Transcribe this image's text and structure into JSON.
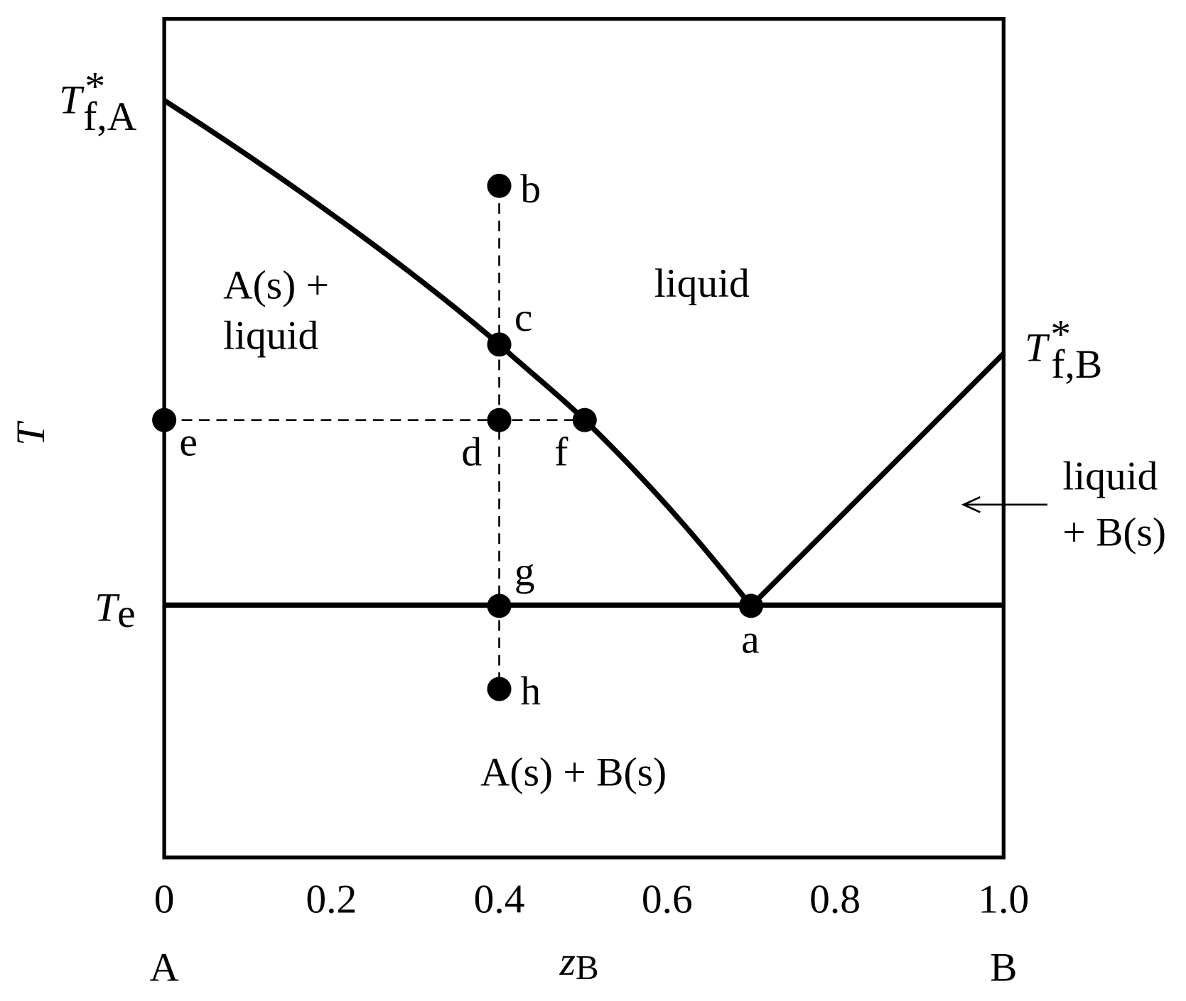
{
  "axis": {
    "y_label": "T",
    "x_label": "z",
    "x_label_subscript": "B",
    "x_ticks": [
      "0",
      "0.2",
      "0.4",
      "0.6",
      "0.8",
      "1.0"
    ],
    "left_end": "A",
    "right_end": "B"
  },
  "temperatures": {
    "melting_A": {
      "symbol": "T",
      "superscript": "*",
      "subscript": "f,A"
    },
    "melting_B": {
      "symbol": "T",
      "superscript": "*",
      "subscript": "f,B"
    },
    "eutectic": {
      "symbol": "T",
      "subscript": "e"
    }
  },
  "regions": {
    "a_solid_liquid": [
      "A(s) +",
      "liquid"
    ],
    "liquid": "liquid",
    "liquid_b_solid": [
      "liquid",
      "+ B(s)"
    ],
    "solids": "A(s) + B(s)"
  },
  "points": [
    "b",
    "c",
    "e",
    "d",
    "f",
    "g",
    "a",
    "h"
  ]
}
